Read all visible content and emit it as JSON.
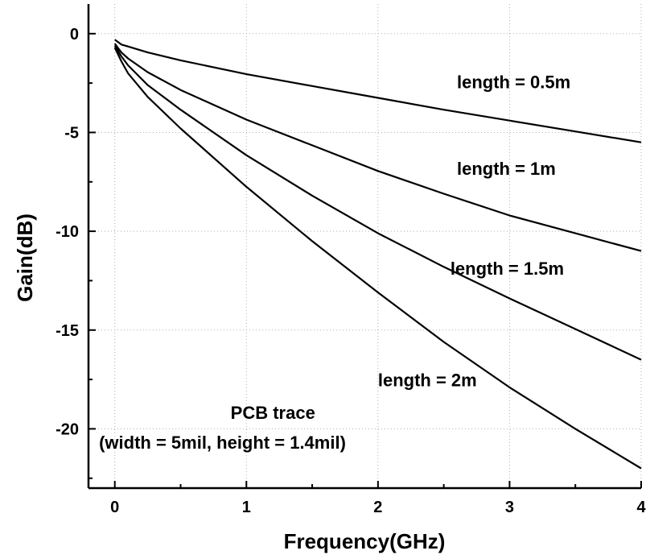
{
  "chart_data": {
    "type": "line",
    "xlabel": "Frequency(GHz)",
    "ylabel": "Gain(dB)",
    "xlim": [
      -0.2,
      4.0
    ],
    "ylim": [
      -23,
      1.5
    ],
    "xticks": [
      0,
      1,
      2,
      3,
      4
    ],
    "xtick_labels": [
      "0",
      "1",
      "2",
      "3",
      "4"
    ],
    "yticks": [
      0,
      -5,
      -10,
      -15,
      -20
    ],
    "ytick_labels": [
      "0",
      "-5",
      "-10",
      "-15",
      "-20"
    ],
    "grid": true,
    "grid_style": "dotted",
    "series": [
      {
        "name": "length = 0.5m",
        "x": [
          0,
          0.05,
          0.1,
          0.25,
          0.5,
          1,
          1.5,
          2,
          2.5,
          3,
          3.5,
          4
        ],
        "y": [
          -0.3,
          -0.55,
          -0.65,
          -0.95,
          -1.35,
          -2.05,
          -2.65,
          -3.25,
          -3.85,
          -4.4,
          -4.95,
          -5.5
        ]
      },
      {
        "name": "length = 1m",
        "x": [
          0,
          0.05,
          0.1,
          0.25,
          0.5,
          1,
          1.5,
          2,
          2.5,
          3,
          3.5,
          4
        ],
        "y": [
          -0.5,
          -0.95,
          -1.25,
          -1.95,
          -2.85,
          -4.35,
          -5.65,
          -6.95,
          -8.1,
          -9.2,
          -10.1,
          -11.0
        ]
      },
      {
        "name": "length = 1.5m",
        "x": [
          0,
          0.05,
          0.1,
          0.25,
          0.5,
          1,
          1.5,
          2,
          2.5,
          3,
          3.5,
          4
        ],
        "y": [
          -0.6,
          -1.15,
          -1.6,
          -2.6,
          -3.85,
          -6.15,
          -8.2,
          -10.1,
          -11.8,
          -13.4,
          -14.95,
          -16.5
        ]
      },
      {
        "name": "length = 2m",
        "x": [
          0,
          0.05,
          0.1,
          0.25,
          0.5,
          1,
          1.5,
          2,
          2.5,
          3,
          3.5,
          4
        ],
        "y": [
          -0.7,
          -1.4,
          -2.0,
          -3.2,
          -4.8,
          -7.75,
          -10.5,
          -13.1,
          -15.6,
          -17.9,
          -20.0,
          -22.0
        ]
      }
    ],
    "annotations": [
      {
        "text": "length = 0.5m",
        "x": 2.6,
        "y": -2.75
      },
      {
        "text": "length = 1m",
        "x": 2.6,
        "y": -7.15
      },
      {
        "text": "length = 1.5m",
        "x": 2.55,
        "y": -12.2
      },
      {
        "text": "length = 2m",
        "x": 2.0,
        "y": -17.85
      },
      {
        "text": "PCB trace",
        "x": 0.88,
        "y": -19.5
      },
      {
        "text": "(width = 5mil, height = 1.4mil)",
        "x": -0.12,
        "y": -21.0
      }
    ]
  }
}
